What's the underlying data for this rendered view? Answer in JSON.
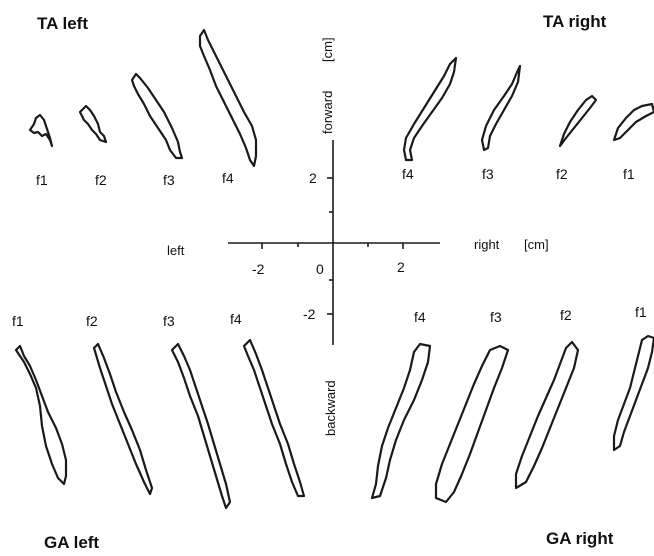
{
  "titles": {
    "ta_left": "TA left",
    "ta_right": "TA right",
    "ga_left": "GA left",
    "ga_right": "GA right"
  },
  "axes": {
    "horizontal_left": "left",
    "horizontal_right": "right",
    "horizontal_unit": "[cm]",
    "vertical_forward": "forward",
    "vertical_unit": "[cm]",
    "vertical_backward": "backward",
    "ticks": {
      "x_neg2": "-2",
      "x_zero": "0",
      "x_pos2": "2",
      "y_pos2": "2",
      "y_neg2": "-2"
    }
  },
  "panels": {
    "ta_left": [
      "f1",
      "f2",
      "f3",
      "f4"
    ],
    "ta_right": [
      "f4",
      "f3",
      "f2",
      "f1"
    ],
    "ga_left": [
      "f1",
      "f2",
      "f3",
      "f4"
    ],
    "ga_right": [
      "f4",
      "f3",
      "f2",
      "f1"
    ]
  }
}
